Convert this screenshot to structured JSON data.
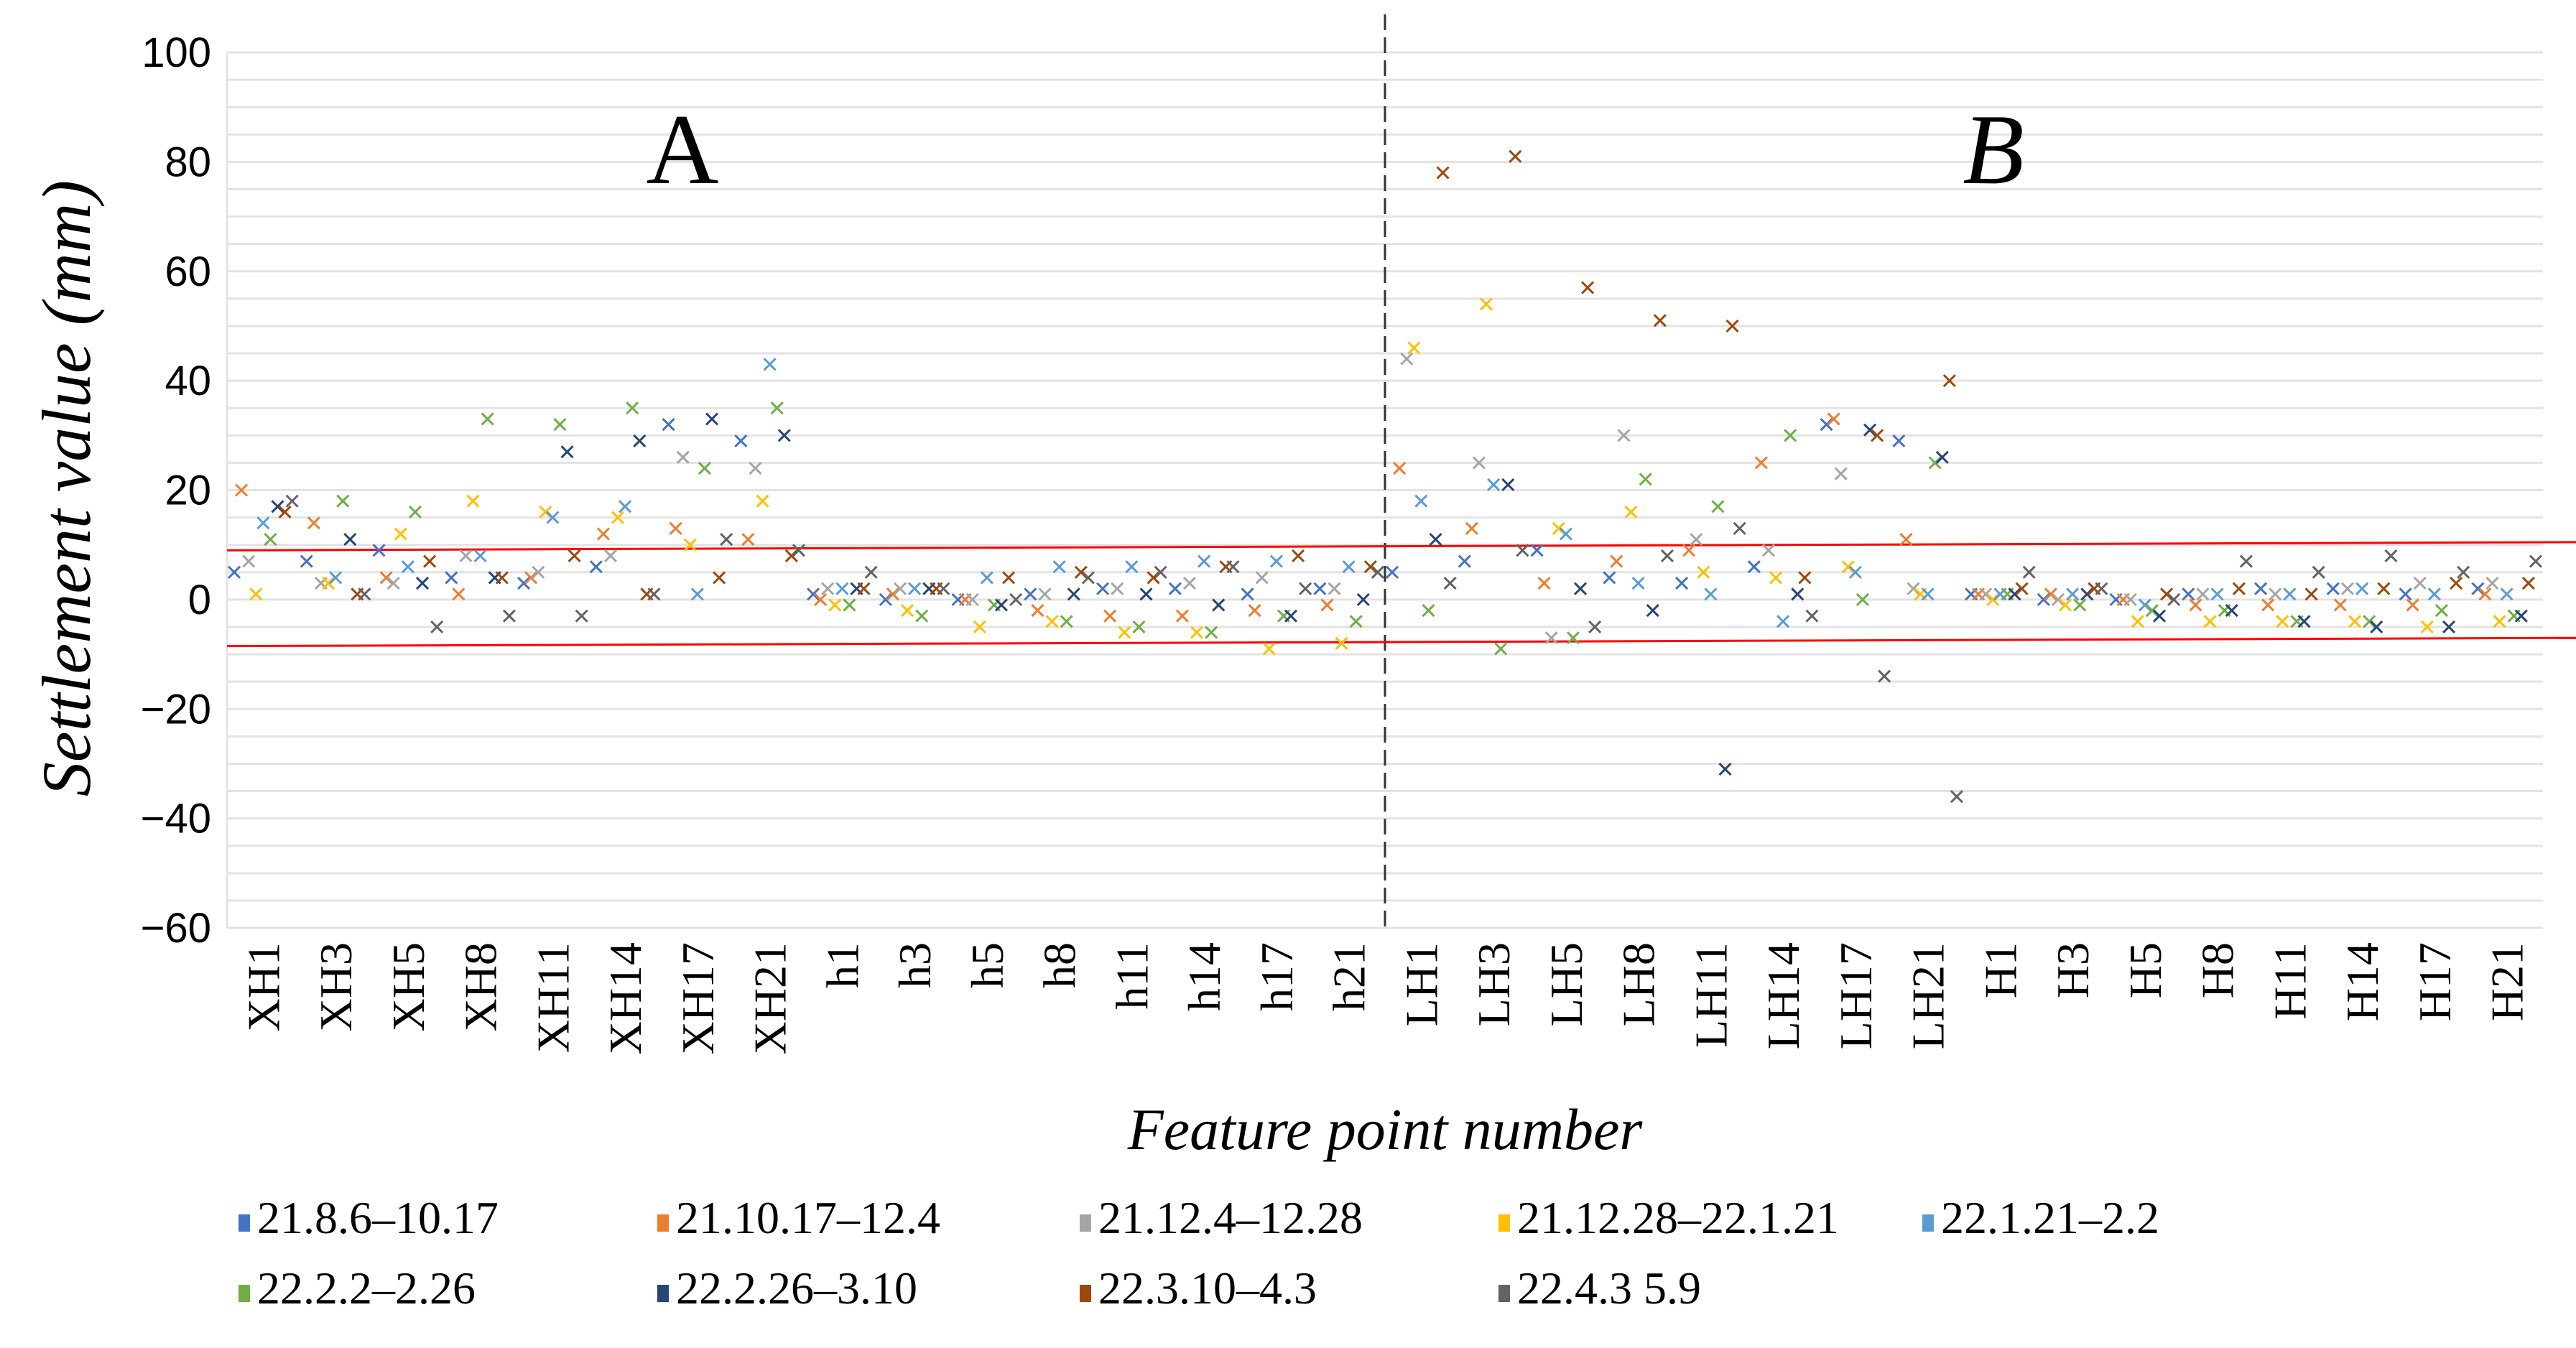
{
  "chart_data": {
    "type": "scatter",
    "title": "",
    "xlabel": "Feature point number",
    "ylabel": "Settlement value (mm)",
    "ylim": [
      -60,
      100
    ],
    "yticks": [
      100,
      80,
      60,
      40,
      20,
      0,
      -20,
      -40,
      -60
    ],
    "grid": true,
    "legend_placement": "bottom",
    "region_labels": [
      "A",
      "B"
    ],
    "region_divider_after": "h21",
    "threshold_lines": {
      "color": "#ff0000",
      "upper": [
        9,
        10.5
      ],
      "lower": [
        -8.5,
        -7
      ]
    },
    "categories": [
      "XH1",
      "XH3",
      "XH5",
      "XH8",
      "XH11",
      "XH14",
      "XH17",
      "XH21",
      "h1",
      "h3",
      "h5",
      "h8",
      "h11",
      "h14",
      "h17",
      "h21",
      "LH1",
      "LH3",
      "LH5",
      "LH8",
      "LH11",
      "LH14",
      "LH17",
      "LH21",
      "H1",
      "H3",
      "H5",
      "H8",
      "H11",
      "H14",
      "H17",
      "H21"
    ],
    "series": [
      {
        "name": "21.8.6–10.17",
        "color": "#4472c4",
        "values": [
          5,
          7,
          9,
          4,
          3,
          6,
          32,
          29,
          1,
          0,
          0,
          1,
          2,
          2,
          1,
          2,
          5,
          7,
          9,
          4,
          3,
          6,
          32,
          29,
          1,
          0,
          0,
          1,
          2,
          2,
          1,
          2
        ]
      },
      {
        "name": "21.10.17–12.4",
        "color": "#ed7d31",
        "values": [
          20,
          14,
          4,
          1,
          4,
          12,
          13,
          11,
          0,
          1,
          0,
          -2,
          -3,
          -3,
          -2,
          -1,
          24,
          13,
          3,
          7,
          9,
          25,
          33,
          11,
          1,
          1,
          0,
          -1,
          -1,
          -1,
          -1,
          1
        ]
      },
      {
        "name": "21.12.4–12.28",
        "color": "#a5a5a5",
        "values": [
          7,
          3,
          3,
          8,
          5,
          8,
          26,
          24,
          2,
          2,
          0,
          1,
          2,
          3,
          4,
          2,
          44,
          25,
          -7,
          30,
          11,
          9,
          23,
          2,
          1,
          0,
          0,
          1,
          1,
          2,
          3,
          3
        ]
      },
      {
        "name": "21.12.28–22.1.21",
        "color": "#ffc000",
        "values": [
          1,
          3,
          12,
          18,
          16,
          15,
          10,
          18,
          -1,
          -2,
          -5,
          -4,
          -6,
          -6,
          -9,
          -8,
          46,
          54,
          13,
          16,
          5,
          4,
          6,
          1,
          0,
          -1,
          -4,
          -4,
          -4,
          -4,
          -5,
          -4
        ]
      },
      {
        "name": "22.1.21–2.2",
        "color": "#5b9bd5",
        "values": [
          14,
          4,
          6,
          8,
          15,
          17,
          1,
          43,
          2,
          2,
          4,
          6,
          6,
          7,
          7,
          6,
          18,
          21,
          12,
          3,
          1,
          -4,
          5,
          1,
          1,
          1,
          -1,
          1,
          1,
          2,
          1,
          1
        ]
      },
      {
        "name": "22.2.2–2.26",
        "color": "#70ad47",
        "values": [
          11,
          18,
          16,
          33,
          32,
          35,
          24,
          35,
          -1,
          -3,
          -1,
          -4,
          -5,
          -6,
          -3,
          -4,
          -2,
          -9,
          -7,
          22,
          17,
          30,
          0,
          25,
          1,
          -1,
          -2,
          -2,
          -4,
          -4,
          -2,
          -3
        ]
      },
      {
        "name": "22.2.26–3.10",
        "color": "#264478",
        "values": [
          17,
          11,
          3,
          4,
          27,
          29,
          33,
          30,
          2,
          2,
          -1,
          1,
          1,
          -1,
          -3,
          0,
          11,
          21,
          2,
          -2,
          -31,
          1,
          31,
          26,
          1,
          1,
          -3,
          -2,
          -4,
          -5,
          -5,
          -3
        ]
      },
      {
        "name": "22.3.10–4.3",
        "color": "#9e480e",
        "values": [
          16,
          1,
          7,
          4,
          8,
          1,
          4,
          8,
          2,
          2,
          4,
          5,
          4,
          6,
          8,
          6,
          78,
          81,
          57,
          51,
          50,
          4,
          30,
          40,
          2,
          2,
          1,
          2,
          1,
          2,
          3,
          3
        ]
      },
      {
        "name": "22.4.3 5.9",
        "color": "#636363",
        "values": [
          18,
          1,
          -5,
          -3,
          -3,
          1,
          11,
          9,
          5,
          2,
          0,
          4,
          5,
          6,
          2,
          5,
          3,
          9,
          -5,
          8,
          13,
          -3,
          -14,
          -36,
          5,
          2,
          0,
          7,
          5,
          8,
          5,
          7
        ]
      }
    ]
  }
}
